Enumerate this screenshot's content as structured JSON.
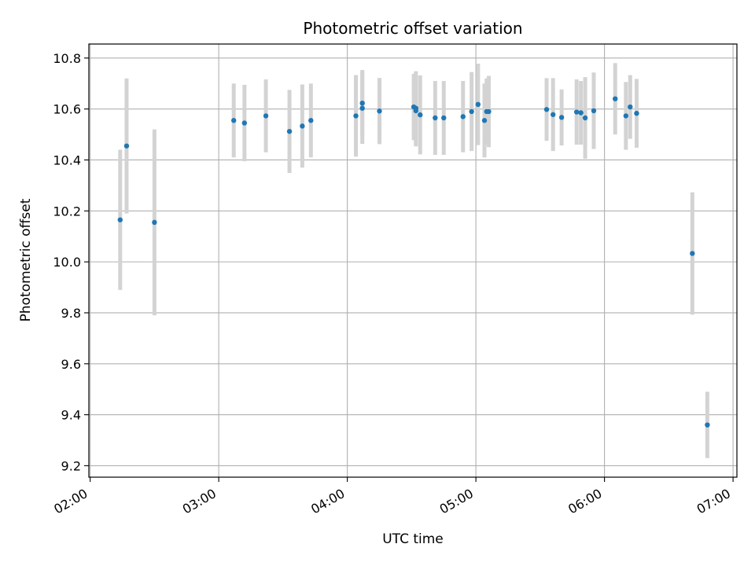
{
  "chart_data": {
    "type": "scatter",
    "title": "Photometric offset variation",
    "xlabel": "UTC time",
    "ylabel": "Photometric offset",
    "x_tick_labels": [
      "02:00",
      "03:00",
      "04:00",
      "05:00",
      "06:00",
      "07:00"
    ],
    "y_tick_labels": [
      "9.2",
      "9.4",
      "9.6",
      "9.8",
      "10.0",
      "10.2",
      "10.4",
      "10.6",
      "10.8"
    ],
    "y_ticks": [
      9.2,
      9.4,
      9.6,
      9.8,
      10.0,
      10.2,
      10.4,
      10.6,
      10.8
    ],
    "x_ticks_hours": [
      2,
      3,
      4,
      5,
      6,
      7
    ],
    "xlim_hours": [
      1.99,
      7.03
    ],
    "ylim": [
      9.155,
      10.855
    ],
    "grid": true,
    "marker_color": "#1f77b4",
    "errorbar_color": "#d3d3d3",
    "points": [
      {
        "t": "02:14",
        "y": 10.165,
        "err": 0.275
      },
      {
        "t": "02:17",
        "y": 10.455,
        "err": 0.265
      },
      {
        "t": "02:30",
        "y": 10.155,
        "err": 0.365
      },
      {
        "t": "03:07",
        "y": 10.555,
        "err": 0.145
      },
      {
        "t": "03:12",
        "y": 10.545,
        "err": 0.15
      },
      {
        "t": "03:22",
        "y": 10.573,
        "err": 0.143
      },
      {
        "t": "03:33",
        "y": 10.512,
        "err": 0.163
      },
      {
        "t": "03:39",
        "y": 10.533,
        "err": 0.163
      },
      {
        "t": "03:43",
        "y": 10.555,
        "err": 0.145
      },
      {
        "t": "04:04",
        "y": 10.573,
        "err": 0.16
      },
      {
        "t": "04:07",
        "y": 10.623,
        "err": 0.13
      },
      {
        "t": "04:07",
        "y": 10.603,
        "err": 0.14
      },
      {
        "t": "04:15",
        "y": 10.592,
        "err": 0.13
      },
      {
        "t": "04:31",
        "y": 10.608,
        "err": 0.13
      },
      {
        "t": "04:32",
        "y": 10.593,
        "err": 0.14
      },
      {
        "t": "04:32",
        "y": 10.603,
        "err": 0.145
      },
      {
        "t": "04:34",
        "y": 10.577,
        "err": 0.155
      },
      {
        "t": "04:41",
        "y": 10.565,
        "err": 0.145
      },
      {
        "t": "04:45",
        "y": 10.565,
        "err": 0.145
      },
      {
        "t": "04:54",
        "y": 10.57,
        "err": 0.14
      },
      {
        "t": "04:58",
        "y": 10.59,
        "err": 0.155
      },
      {
        "t": "05:01",
        "y": 10.618,
        "err": 0.16
      },
      {
        "t": "05:04",
        "y": 10.555,
        "err": 0.145
      },
      {
        "t": "05:05",
        "y": 10.59,
        "err": 0.13
      },
      {
        "t": "05:06",
        "y": 10.59,
        "err": 0.14
      },
      {
        "t": "05:33",
        "y": 10.598,
        "err": 0.123
      },
      {
        "t": "05:36",
        "y": 10.578,
        "err": 0.143
      },
      {
        "t": "05:40",
        "y": 10.567,
        "err": 0.11
      },
      {
        "t": "05:47",
        "y": 10.588,
        "err": 0.128
      },
      {
        "t": "05:49",
        "y": 10.585,
        "err": 0.125
      },
      {
        "t": "05:51",
        "y": 10.565,
        "err": 0.16
      },
      {
        "t": "05:55",
        "y": 10.593,
        "err": 0.15
      },
      {
        "t": "06:05",
        "y": 10.64,
        "err": 0.14
      },
      {
        "t": "06:10",
        "y": 10.573,
        "err": 0.133
      },
      {
        "t": "06:12",
        "y": 10.608,
        "err": 0.125
      },
      {
        "t": "06:15",
        "y": 10.583,
        "err": 0.135
      },
      {
        "t": "06:41",
        "y": 10.033,
        "err": 0.24
      },
      {
        "t": "06:48",
        "y": 9.36,
        "err": 0.13
      }
    ]
  }
}
